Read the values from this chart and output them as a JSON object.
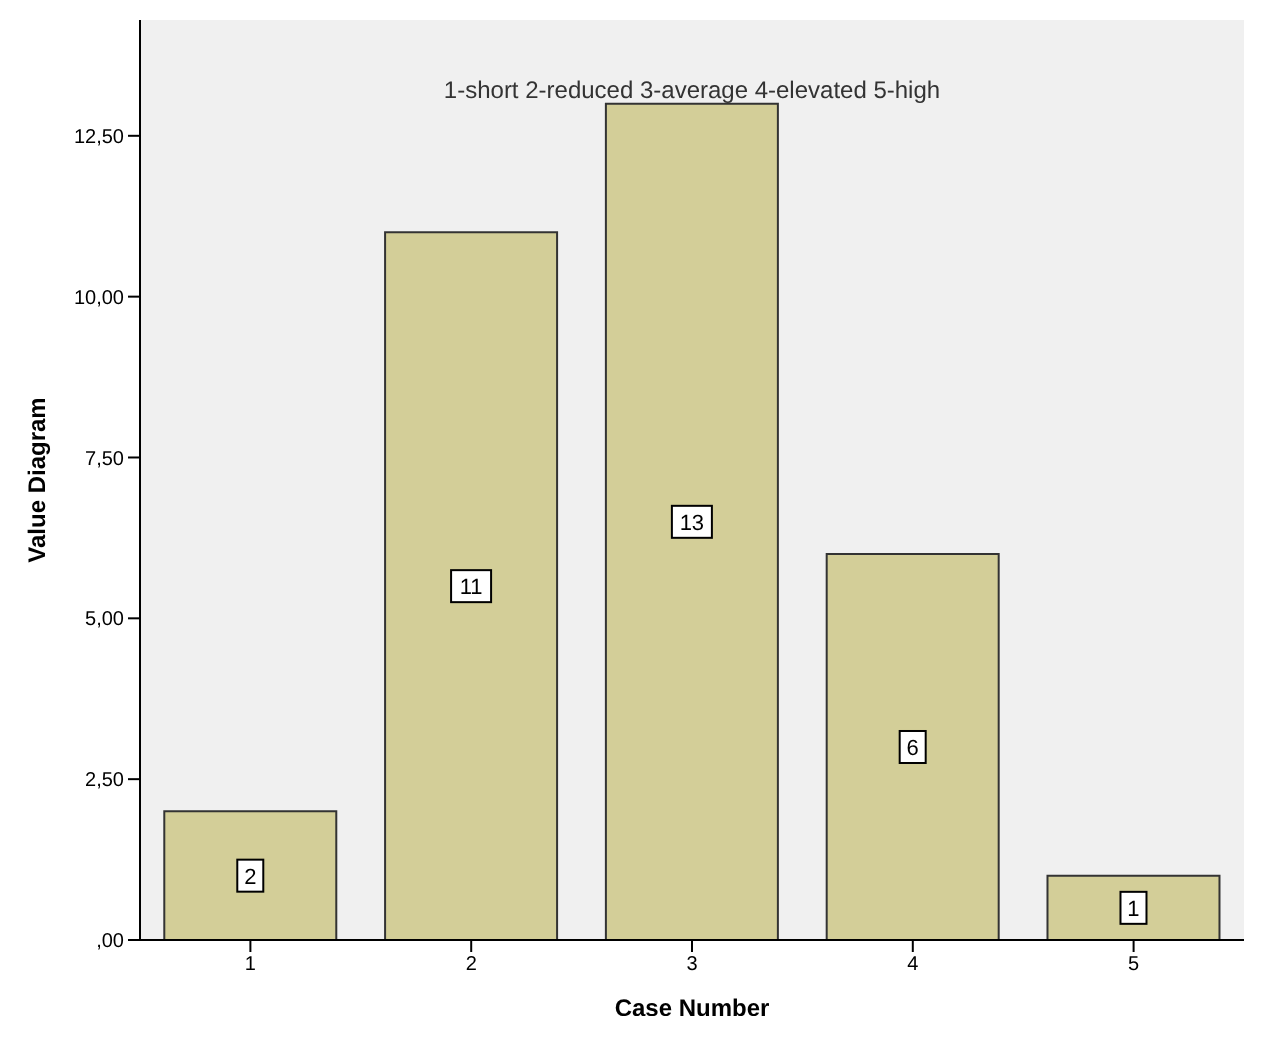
{
  "chart_data": {
    "type": "bar",
    "xlabel": "Case Number",
    "ylabel": "Value Diagram",
    "categories": [
      "1",
      "2",
      "3",
      "4",
      "5"
    ],
    "values": [
      2,
      11,
      13,
      6,
      1
    ],
    "color": "#d3ce98",
    "ylim": [
      0,
      14.3
    ],
    "yticks": [
      {
        "value": 0,
        "label": ",00"
      },
      {
        "value": 2.5,
        "label": "2,50"
      },
      {
        "value": 5,
        "label": "5,00"
      },
      {
        "value": 7.5,
        "label": "7,50"
      },
      {
        "value": 10,
        "label": "10,00"
      },
      {
        "value": 12.5,
        "label": "12,50"
      }
    ],
    "data_labels": true,
    "grid": false,
    "annotations": [
      "1-short 2-reduced 3-average 4-elevated 5-high"
    ]
  }
}
